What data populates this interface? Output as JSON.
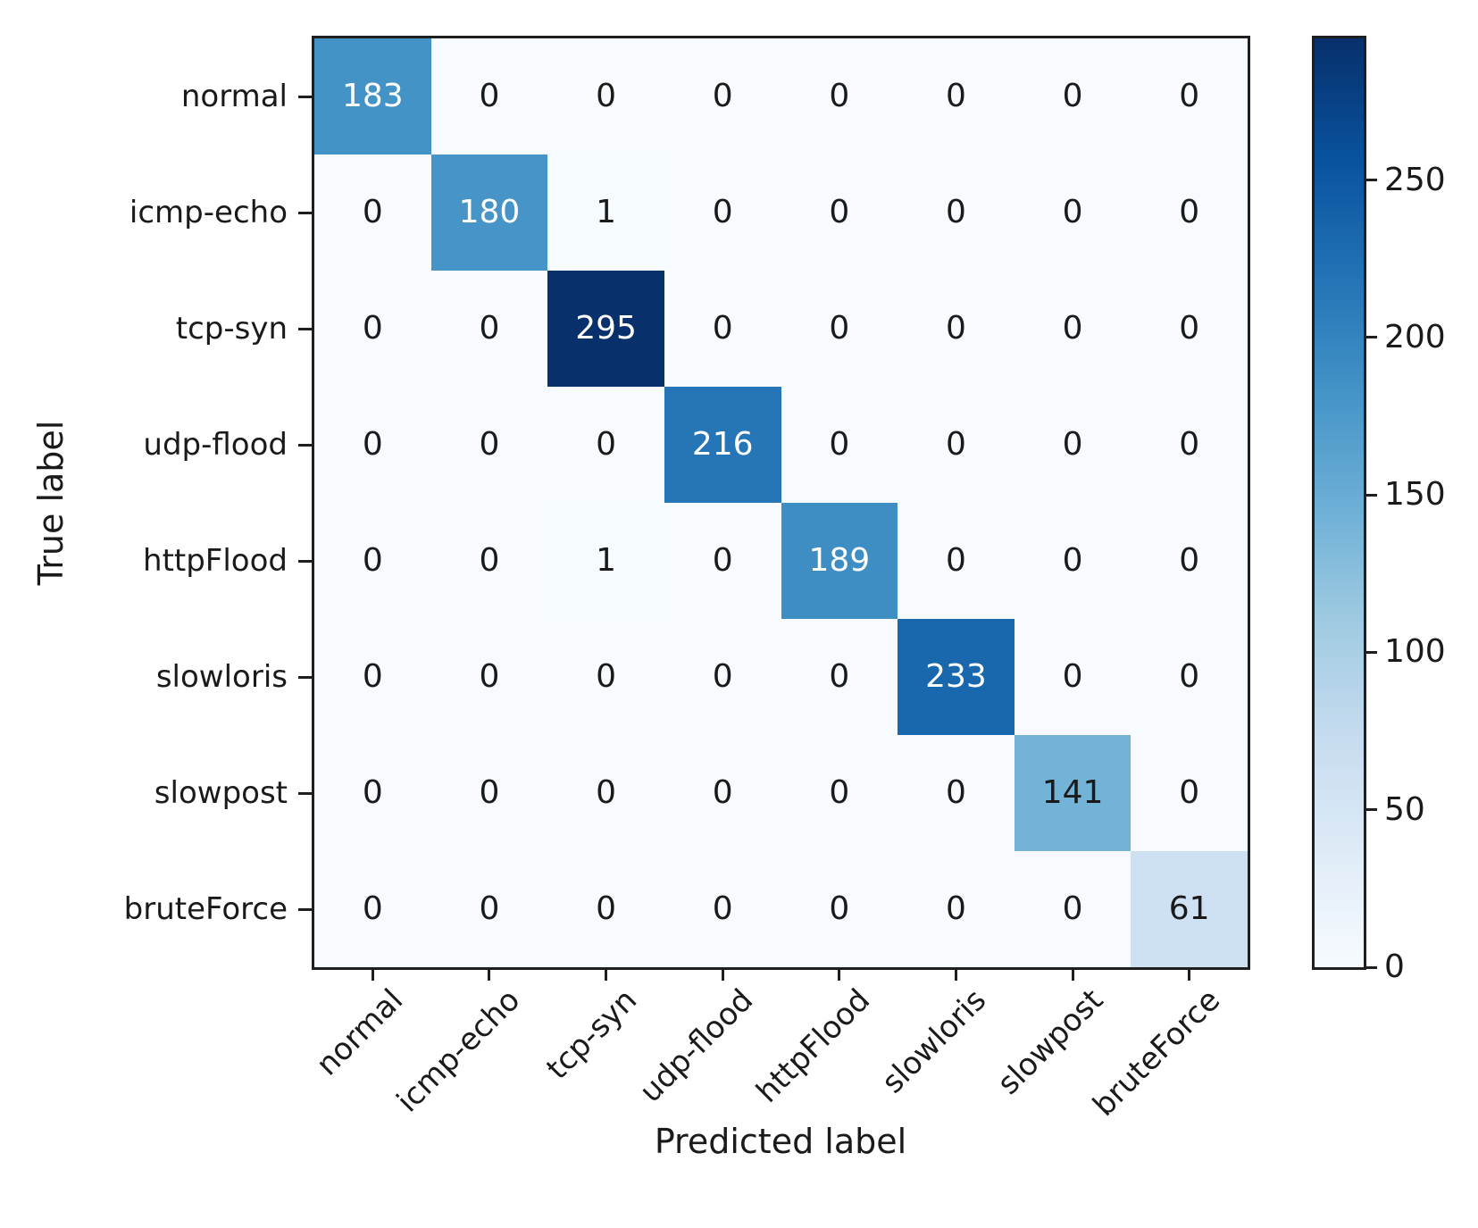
{
  "chart_data": {
    "type": "heatmap",
    "subtype": "confusion-matrix",
    "xlabel": "Predicted label",
    "ylabel": "True label",
    "categories": [
      "normal",
      "icmp-echo",
      "tcp-syn",
      "udp-flood",
      "httpFlood",
      "slowloris",
      "slowpost",
      "bruteForce"
    ],
    "matrix": [
      [
        183,
        0,
        0,
        0,
        0,
        0,
        0,
        0
      ],
      [
        0,
        180,
        1,
        0,
        0,
        0,
        0,
        0
      ],
      [
        0,
        0,
        295,
        0,
        0,
        0,
        0,
        0
      ],
      [
        0,
        0,
        0,
        216,
        0,
        0,
        0,
        0
      ],
      [
        0,
        0,
        1,
        0,
        189,
        0,
        0,
        0
      ],
      [
        0,
        0,
        0,
        0,
        0,
        233,
        0,
        0
      ],
      [
        0,
        0,
        0,
        0,
        0,
        0,
        141,
        0
      ],
      [
        0,
        0,
        0,
        0,
        0,
        0,
        0,
        61
      ]
    ],
    "vmin": 0,
    "vmax": 295,
    "colorbar_ticks": [
      0,
      50,
      100,
      150,
      200,
      250
    ],
    "colormap_name": "Blues",
    "colormap_anchors": [
      "#f7fbff",
      "#deebf7",
      "#c6dbef",
      "#9ecae1",
      "#6baed6",
      "#4292c6",
      "#2171b5",
      "#08519c",
      "#08306b"
    ],
    "legend_position": "right-colorbar",
    "grid": false,
    "colors": {
      "cell_text_light": "#ffffff",
      "cell_text_dark": "#1a1a1a",
      "axis_line": "#1f1f1f",
      "figure_background": "#ffffff"
    }
  }
}
